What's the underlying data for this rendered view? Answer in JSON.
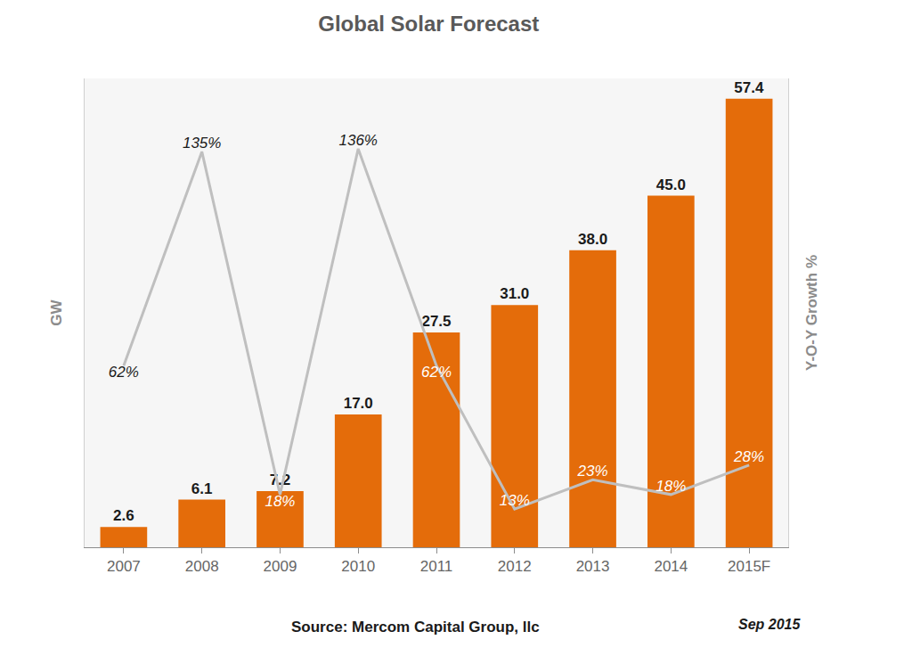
{
  "chart_data": {
    "type": "bar",
    "title": "Global Solar Forecast",
    "ylabel": "GW",
    "y2label": "Y-O-Y Growth %",
    "categories": [
      "2007",
      "2008",
      "2009",
      "2010",
      "2011",
      "2012",
      "2013",
      "2014",
      "2015F"
    ],
    "series": [
      {
        "type": "bar",
        "color": "#e46c0a",
        "values": [
          2.6,
          6.1,
          7.2,
          17.0,
          27.5,
          31.0,
          38.0,
          45.0,
          57.4
        ],
        "value_labels": [
          "2.6",
          "6.1",
          "7.2",
          "17.0",
          "27.5",
          "31.0",
          "38.0",
          "45.0",
          "57.4"
        ]
      },
      {
        "type": "line",
        "axis": "y2",
        "color": "#bfbfbf",
        "values": [
          62,
          135,
          18,
          136,
          62,
          13,
          23,
          18,
          28
        ],
        "value_labels": [
          "62%",
          "135%",
          "18%",
          "136%",
          "62%",
          "13%",
          "23%",
          "18%",
          "28%"
        ]
      }
    ],
    "ylim": [
      0,
      60
    ],
    "y2lim": [
      0,
      160
    ],
    "tick_labels": "x",
    "data_labels": true,
    "grid": false,
    "source": "Source: Mercom Capital Group, llc",
    "date": "Sep 2015"
  }
}
